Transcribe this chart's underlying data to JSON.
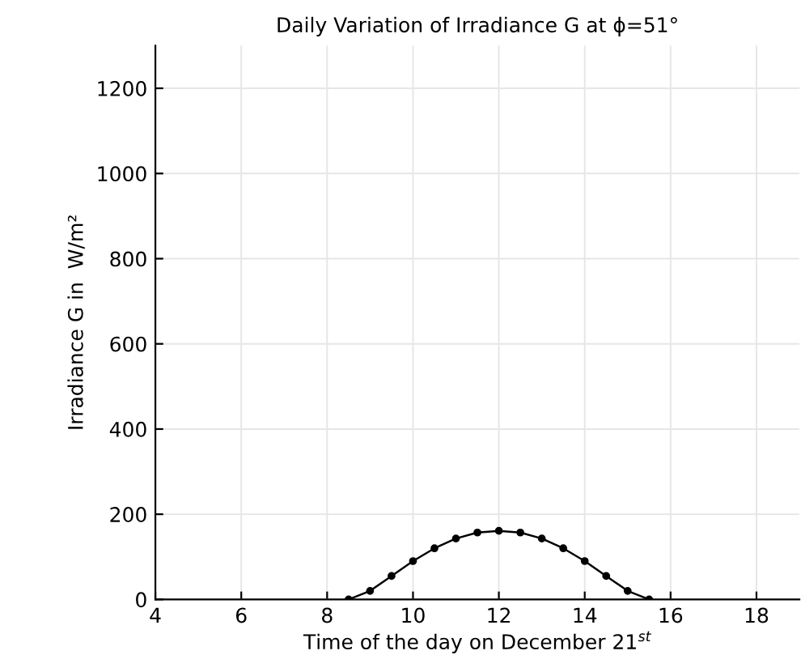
{
  "chart_data": {
    "type": "line",
    "title": "Daily Variation of Irradiance G at ϕ=51°",
    "xlabel": "Time of the day on December 21$^{st}$",
    "ylabel": "Irradiance G in  W/m²",
    "x": [
      8.5,
      9,
      9.5,
      10,
      10.5,
      11,
      11.5,
      12,
      12.5,
      13,
      13.5,
      14,
      14.5,
      15,
      15.5
    ],
    "series": [
      {
        "color": "#000000",
        "values": [
          0,
          20,
          55,
          90,
          120,
          143,
          157,
          161,
          157,
          143,
          120,
          90,
          55,
          20,
          0
        ]
      }
    ],
    "xlim": [
      4,
      19
    ],
    "xticks": [
      4,
      6,
      8,
      10,
      12,
      14,
      16,
      18
    ],
    "ylim": [
      0,
      1300
    ],
    "yticks": [
      0,
      200,
      400,
      600,
      800,
      1000,
      1200
    ],
    "grid": true,
    "marker": "circle",
    "line_style": "solid"
  }
}
